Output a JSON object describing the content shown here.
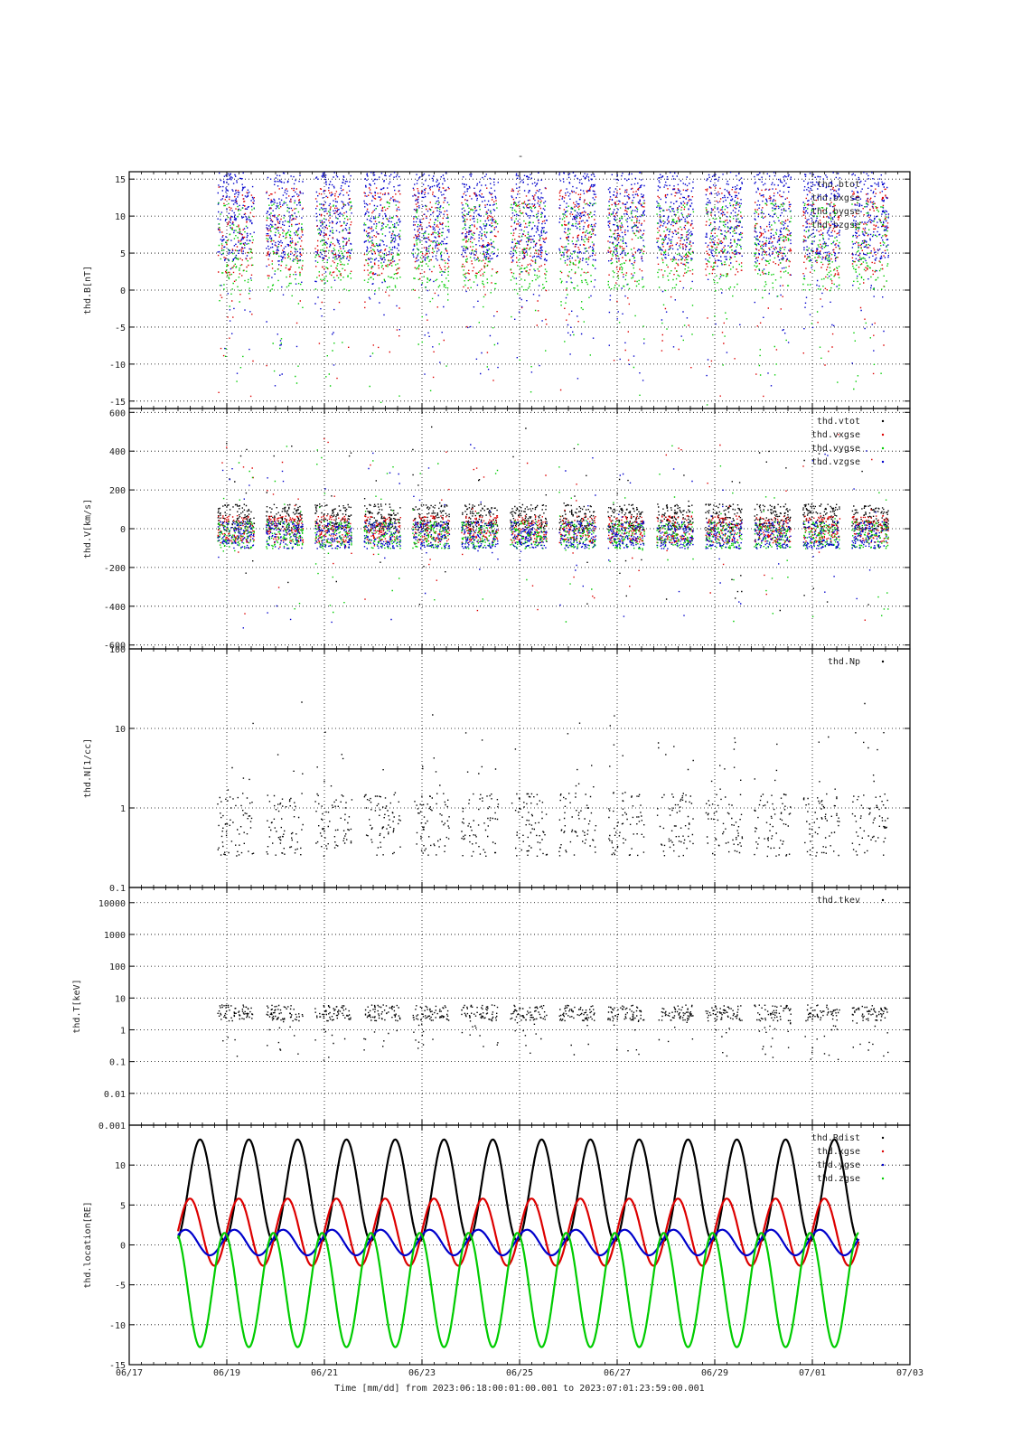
{
  "header": {
    "title": "-"
  },
  "footer": {
    "time_label": "Time [mm/dd]  from 2023:06:18:00:01:00.001  to  2023:07:01:23:59:00.001"
  },
  "x_axis": {
    "tick_labels": [
      "06/17",
      "06/19",
      "06/21",
      "06/23",
      "06/25",
      "06/27",
      "06/29",
      "07/01",
      "07/03"
    ],
    "tick_days": [
      0,
      2,
      4,
      6,
      8,
      10,
      12,
      14,
      16
    ],
    "range_days": [
      0,
      16
    ]
  },
  "colors": {
    "black": "#000000",
    "red": "#dd0000",
    "blue": "#0000cc",
    "green": "#00cc00"
  },
  "chart_data": [
    {
      "type": "scatter",
      "ylabel": "thd.B[nT]",
      "ylim": [
        -16,
        16
      ],
      "yticks": [
        15,
        10,
        5,
        0,
        -5,
        -10,
        -15
      ],
      "ytick_labels": [
        "15",
        "10",
        "5",
        "0",
        "-5",
        "-10",
        "-15"
      ],
      "legend_placement": "top-right",
      "series": [
        {
          "name": "thd.btot",
          "color": "#0000cc"
        },
        {
          "name": "thd.bxgse",
          "color": "#dd0000"
        },
        {
          "name": "thd.bygse",
          "color": "#0000cc"
        },
        {
          "name": "thd.bzgse",
          "color": "#00cc00"
        }
      ]
    },
    {
      "type": "scatter",
      "ylabel": "thd.V[km/s]",
      "ylim": [
        -620,
        620
      ],
      "yticks": [
        600,
        400,
        200,
        0,
        -200,
        -400,
        -600
      ],
      "ytick_labels": [
        "600",
        "400",
        "200",
        "0",
        "-200",
        "-400",
        "-600"
      ],
      "legend_placement": "top-right",
      "series": [
        {
          "name": "thd.vtot",
          "color": "#000000"
        },
        {
          "name": "thd.vxgse",
          "color": "#dd0000"
        },
        {
          "name": "thd.vygse",
          "color": "#00cc00"
        },
        {
          "name": "thd.vzgse",
          "color": "#0000cc"
        }
      ]
    },
    {
      "type": "scatter",
      "ylabel": "thd.N[1/cc]",
      "log_scale": true,
      "ylim": [
        0.1,
        100
      ],
      "yticks": [
        100,
        10,
        1,
        0.1
      ],
      "ytick_labels": [
        "100",
        "10",
        "1",
        "0.1"
      ],
      "legend_placement": "top-right",
      "series": [
        {
          "name": "thd.Np",
          "color": "#000000"
        }
      ]
    },
    {
      "type": "scatter",
      "ylabel": "thd.T[keV]",
      "log_scale": true,
      "ylim": [
        0.001,
        30000
      ],
      "yticks": [
        10000,
        1000,
        100,
        10,
        1,
        0.1,
        0.01,
        0.001
      ],
      "ytick_labels": [
        "10000",
        "1000",
        "100",
        "10",
        "1",
        "0.1",
        "0.01",
        "0.001"
      ],
      "legend_placement": "top-right",
      "series": [
        {
          "name": "thd.tkev",
          "color": "#000000"
        }
      ]
    },
    {
      "type": "line",
      "ylabel": "thd.location[RE]",
      "ylim": [
        -15,
        15
      ],
      "yticks": [
        10,
        5,
        0,
        -5,
        -10,
        -15
      ],
      "ytick_labels": [
        "10",
        "5",
        "0",
        "-5",
        "-10",
        "-15"
      ],
      "legend_placement": "top-right",
      "orbit_period_days": 1.0,
      "x_range_days": [
        1.0,
        14.95
      ],
      "series": [
        {
          "name": "thd.Rdist",
          "color": "#000000",
          "min": 0.5,
          "max": 13.2
        },
        {
          "name": "thd.xgse",
          "color": "#dd0000",
          "min": -2.6,
          "max": 5.8
        },
        {
          "name": "thd.ygse",
          "color": "#0000cc",
          "min": -1.3,
          "max": 1.9
        },
        {
          "name": "thd.zgse",
          "color": "#00cc00",
          "min": -12.8,
          "max": 1.5
        }
      ]
    }
  ]
}
